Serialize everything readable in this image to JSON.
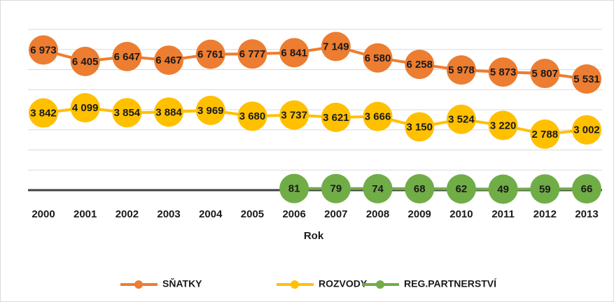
{
  "chart_data": {
    "type": "line",
    "x_label": "Rok",
    "categories": [
      "2000",
      "2001",
      "2002",
      "2003",
      "2004",
      "2005",
      "2006",
      "2007",
      "2008",
      "2009",
      "2010",
      "2011",
      "2012",
      "2013"
    ],
    "series": [
      {
        "name": "SŇATKY",
        "color": "#ed7d31",
        "values": [
          6973,
          6405,
          6647,
          6467,
          6761,
          6777,
          6841,
          7149,
          6580,
          6258,
          5978,
          5873,
          5807,
          5531
        ],
        "value_labels": [
          "6 973",
          "6 405",
          "6 647",
          "6 467",
          "6 761",
          "6 777",
          "6 841",
          "7 149",
          "6 580",
          "6 258",
          "5 978",
          "5 873",
          "5 807",
          "5 531"
        ]
      },
      {
        "name": "ROZVODY",
        "color": "#ffc000",
        "values": [
          3842,
          4099,
          3854,
          3884,
          3969,
          3680,
          3737,
          3621,
          3666,
          3150,
          3524,
          3220,
          2788,
          3002
        ],
        "value_labels": [
          "3 842",
          "4 099",
          "3 854",
          "3 884",
          "3 969",
          "3 680",
          "3 737",
          "3 621",
          "3 666",
          "3 150",
          "3 524",
          "3 220",
          "2 788",
          "3 002"
        ]
      },
      {
        "name": "REG.PARTNERSTVÍ",
        "color": "#70ad47",
        "values": [
          null,
          null,
          null,
          null,
          null,
          null,
          81,
          79,
          74,
          68,
          62,
          49,
          59,
          66
        ]
      }
    ],
    "ylim": [
      0,
      8000
    ],
    "yticks": [
      0,
      1000,
      2000,
      3000,
      4000,
      5000,
      6000,
      7000,
      8000
    ],
    "grid": true,
    "legend": "bottom"
  }
}
